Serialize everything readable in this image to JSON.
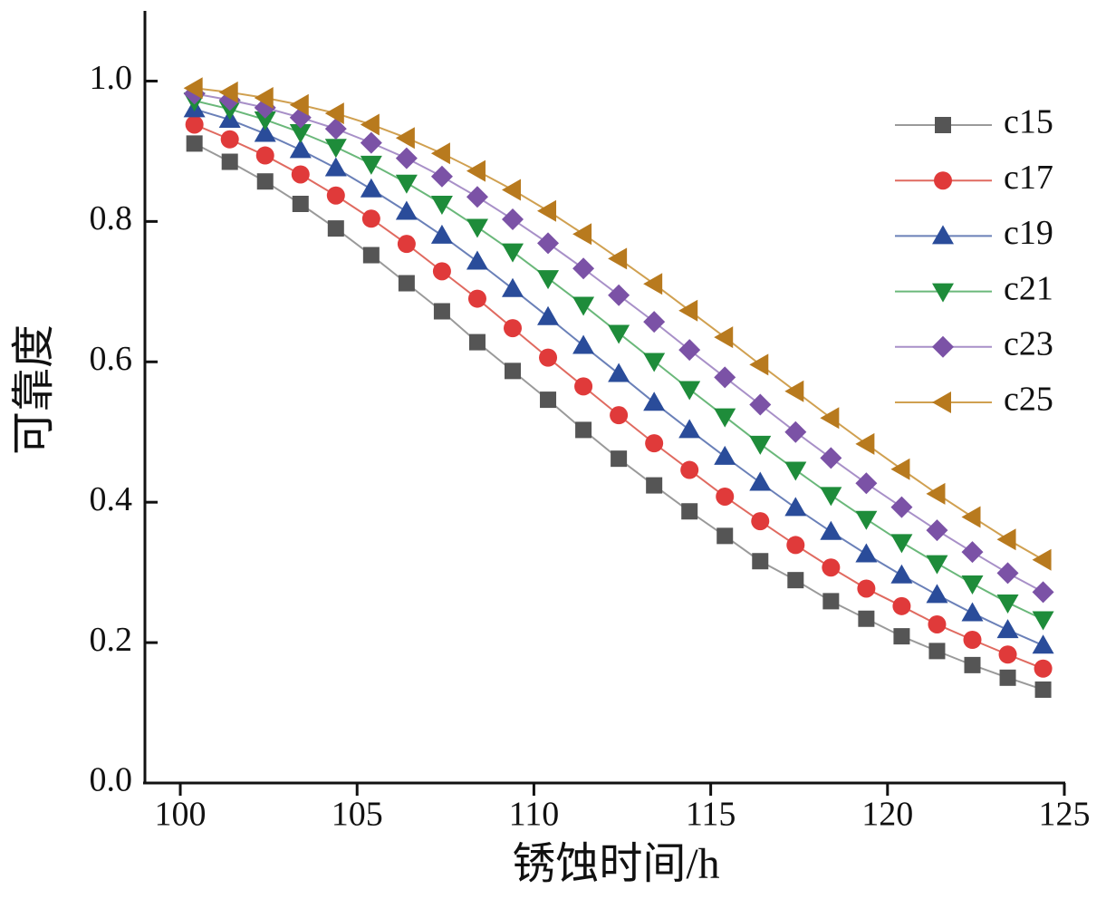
{
  "chart_data": {
    "type": "line",
    "x_label": "锈蚀时间/h",
    "y_label": "可靠度",
    "x": [
      100.4,
      101.4,
      102.4,
      103.4,
      104.4,
      105.4,
      106.4,
      107.4,
      108.4,
      109.4,
      110.4,
      111.4,
      112.4,
      113.4,
      114.4,
      115.4,
      116.4,
      117.4,
      118.4,
      119.4,
      120.4,
      121.4,
      122.4,
      123.4,
      124.4
    ],
    "xlim": [
      99,
      125
    ],
    "xticks": [
      100,
      105,
      110,
      115,
      120,
      125
    ],
    "ylim": [
      0,
      1.1
    ],
    "yticks": [
      {
        "value": 0,
        "label": "0.0"
      },
      0.2,
      0.4,
      0.6,
      0.8,
      {
        "value": 1,
        "label": "1.0"
      }
    ],
    "legend": "upper-right",
    "series": [
      {
        "name": "c15",
        "color": "#555555",
        "line_color": "#9a9a9a",
        "marker": "square",
        "values": [
          0.911,
          0.885,
          0.857,
          0.825,
          0.79,
          0.752,
          0.712,
          0.672,
          0.628,
          0.587,
          0.546,
          0.503,
          0.462,
          0.424,
          0.387,
          0.352,
          0.316,
          0.289,
          0.259,
          0.234,
          0.209,
          0.188,
          0.168,
          0.15,
          0.133
        ]
      },
      {
        "name": "c17",
        "color": "#e03a3a",
        "line_color": "#e06a60",
        "marker": "circle",
        "values": [
          0.938,
          0.917,
          0.894,
          0.867,
          0.837,
          0.804,
          0.768,
          0.729,
          0.69,
          0.648,
          0.606,
          0.565,
          0.524,
          0.484,
          0.446,
          0.408,
          0.373,
          0.339,
          0.307,
          0.277,
          0.252,
          0.226,
          0.204,
          0.183,
          0.163
        ]
      },
      {
        "name": "c19",
        "color": "#2a4c9a",
        "line_color": "#6a80b8",
        "marker": "triangle-up",
        "values": [
          0.96,
          0.945,
          0.925,
          0.902,
          0.876,
          0.846,
          0.814,
          0.78,
          0.743,
          0.704,
          0.664,
          0.623,
          0.583,
          0.542,
          0.503,
          0.465,
          0.428,
          0.392,
          0.358,
          0.326,
          0.296,
          0.268,
          0.242,
          0.218,
          0.196
        ]
      },
      {
        "name": "c21",
        "color": "#1e8c3a",
        "line_color": "#6ab87a",
        "marker": "triangle-down",
        "values": [
          0.972,
          0.96,
          0.945,
          0.927,
          0.906,
          0.882,
          0.855,
          0.825,
          0.792,
          0.757,
          0.719,
          0.681,
          0.641,
          0.601,
          0.561,
          0.522,
          0.483,
          0.446,
          0.41,
          0.376,
          0.343,
          0.313,
          0.284,
          0.257,
          0.233
        ]
      },
      {
        "name": "c23",
        "color": "#7b52a6",
        "line_color": "#a890c8",
        "marker": "diamond",
        "values": [
          0.982,
          0.973,
          0.962,
          0.948,
          0.932,
          0.912,
          0.89,
          0.864,
          0.835,
          0.803,
          0.769,
          0.733,
          0.695,
          0.657,
          0.617,
          0.578,
          0.539,
          0.5,
          0.463,
          0.427,
          0.393,
          0.36,
          0.329,
          0.299,
          0.272
        ]
      },
      {
        "name": "c25",
        "color": "#b87a1e",
        "line_color": "#d0a050",
        "marker": "triangle-left",
        "values": [
          0.99,
          0.984,
          0.976,
          0.966,
          0.954,
          0.938,
          0.919,
          0.897,
          0.872,
          0.845,
          0.815,
          0.782,
          0.747,
          0.711,
          0.673,
          0.635,
          0.596,
          0.558,
          0.52,
          0.483,
          0.447,
          0.412,
          0.379,
          0.347,
          0.318
        ]
      }
    ]
  }
}
